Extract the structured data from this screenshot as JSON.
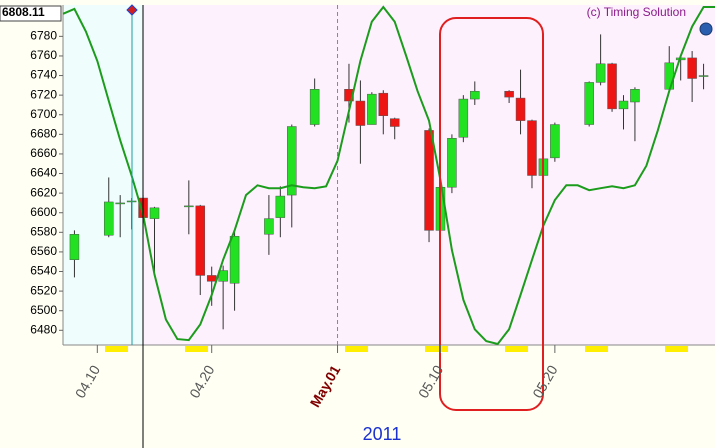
{
  "chart_data": {
    "type": "candlestick",
    "annotation": "(c) Timing Solution",
    "xlabel": "2011",
    "last_price": 6808.11,
    "up_color": "#22e022",
    "down_color": "#ee1515",
    "xlim": [
      "2011-04-07",
      "2011-06-03"
    ],
    "xticks": [
      {
        "value": "2011-04-10",
        "label": "04.10"
      },
      {
        "value": "2011-04-20",
        "label": "04.20"
      },
      {
        "value": "2011-05-01",
        "label": "May.01",
        "color": "#800000"
      },
      {
        "value": "2011-05-10",
        "label": "05.10"
      },
      {
        "value": "2011-05-20",
        "label": "05.20"
      }
    ],
    "ylim": [
      6465,
      6812
    ],
    "yticks": [
      6480,
      6500,
      6520,
      6540,
      6560,
      6580,
      6600,
      6620,
      6640,
      6660,
      6680,
      6700,
      6720,
      6740,
      6760,
      6780
    ],
    "x": [
      "2011-04-08",
      "2011-04-11",
      "2011-04-12",
      "2011-04-13",
      "2011-04-14",
      "2011-04-15",
      "2011-04-18",
      "2011-04-19",
      "2011-04-20",
      "2011-04-21",
      "2011-04-22",
      "2011-04-25",
      "2011-04-26",
      "2011-04-27",
      "2011-04-29",
      "2011-05-02",
      "2011-05-03",
      "2011-05-04",
      "2011-05-05",
      "2011-05-06",
      "2011-05-09",
      "2011-05-10",
      "2011-05-11",
      "2011-05-12",
      "2011-05-13",
      "2011-05-16",
      "2011-05-17",
      "2011-05-18",
      "2011-05-19",
      "2011-05-20",
      "2011-05-23",
      "2011-05-24",
      "2011-05-25",
      "2011-05-26",
      "2011-05-27",
      "2011-05-30",
      "2011-05-31",
      "2011-06-01",
      "2011-06-02"
    ],
    "open": [
      6552,
      6577,
      6609,
      6611,
      6615,
      6594,
      6606,
      6607,
      6536,
      6530,
      6528,
      6578,
      6595,
      6618,
      6690,
      6726,
      6714,
      6690,
      6722,
      6696,
      6684,
      6582,
      6626,
      6677,
      6716,
      6724,
      6717,
      6694,
      6638,
      6656,
      6690,
      6733,
      6752,
      6706,
      6713,
      6726,
      6756,
      6758,
      6739
    ],
    "high": [
      6582,
      6636,
      6618,
      6615,
      6618,
      6606,
      6633,
      6608,
      6545,
      6546,
      6582,
      6618,
      6627,
      6690,
      6737,
      6752,
      6735,
      6723,
      6725,
      6697,
      6686,
      6640,
      6680,
      6720,
      6734,
      6725,
      6746,
      6695,
      6668,
      6692,
      6734,
      6782,
      6753,
      6720,
      6728,
      6770,
      6760,
      6765,
      6752
    ],
    "low": [
      6534,
      6575,
      6575,
      6583,
      6578,
      6540,
      6578,
      6516,
      6505,
      6481,
      6500,
      6557,
      6575,
      6585,
      6688,
      6692,
      6650,
      6690,
      6680,
      6675,
      6570,
      6555,
      6620,
      6672,
      6710,
      6712,
      6680,
      6625,
      6615,
      6652,
      6688,
      6730,
      6703,
      6685,
      6673,
      6725,
      6735,
      6713,
      6726
    ],
    "close": [
      6578,
      6611,
      6610,
      6612,
      6595,
      6605,
      6607,
      6536,
      6530,
      6541,
      6576,
      6594,
      6617,
      6688,
      6726,
      6714,
      6689,
      6721,
      6699,
      6688,
      6582,
      6626,
      6676,
      6716,
      6724,
      6718,
      6694,
      6638,
      6655,
      6690,
      6733,
      6752,
      6706,
      6714,
      6726,
      6753,
      6758,
      6737,
      6740
    ],
    "overlay": {
      "type": "line",
      "color": "#1c9c1c",
      "x": [
        "2011-04-07",
        "2011-04-08",
        "2011-04-09",
        "2011-04-10",
        "2011-04-11",
        "2011-04-12",
        "2011-04-13",
        "2011-04-14",
        "2011-04-15",
        "2011-04-16",
        "2011-04-17",
        "2011-04-18",
        "2011-04-19",
        "2011-04-20",
        "2011-04-21",
        "2011-04-22",
        "2011-04-23",
        "2011-04-24",
        "2011-04-25",
        "2011-04-26",
        "2011-04-27",
        "2011-04-28",
        "2011-04-29",
        "2011-04-30",
        "2011-05-01",
        "2011-05-02",
        "2011-05-03",
        "2011-05-04",
        "2011-05-05",
        "2011-05-06",
        "2011-05-07",
        "2011-05-08",
        "2011-05-09",
        "2011-05-10",
        "2011-05-11",
        "2011-05-12",
        "2011-05-13",
        "2011-05-14",
        "2011-05-15",
        "2011-05-16",
        "2011-05-17",
        "2011-05-18",
        "2011-05-19",
        "2011-05-20",
        "2011-05-21",
        "2011-05-22",
        "2011-05-23",
        "2011-05-24",
        "2011-05-25",
        "2011-05-26",
        "2011-05-27",
        "2011-05-28",
        "2011-05-29",
        "2011-05-30",
        "2011-05-31",
        "2011-06-01",
        "2011-06-02",
        "2011-06-03"
      ],
      "values": [
        6803,
        6808,
        6785,
        6755,
        6714,
        6674,
        6638,
        6598,
        6537,
        6491,
        6471,
        6470,
        6486,
        6516,
        6552,
        6582,
        6618,
        6628,
        6625,
        6625,
        6628,
        6626,
        6625,
        6627,
        6653,
        6704,
        6755,
        6795,
        6810,
        6795,
        6760,
        6724,
        6694,
        6633,
        6562,
        6511,
        6481,
        6469,
        6466,
        6481,
        6516,
        6552,
        6587,
        6613,
        6628,
        6628,
        6623,
        6625,
        6627,
        6625,
        6628,
        6648,
        6684,
        6724,
        6760,
        6790,
        6810,
        6810
      ]
    }
  }
}
